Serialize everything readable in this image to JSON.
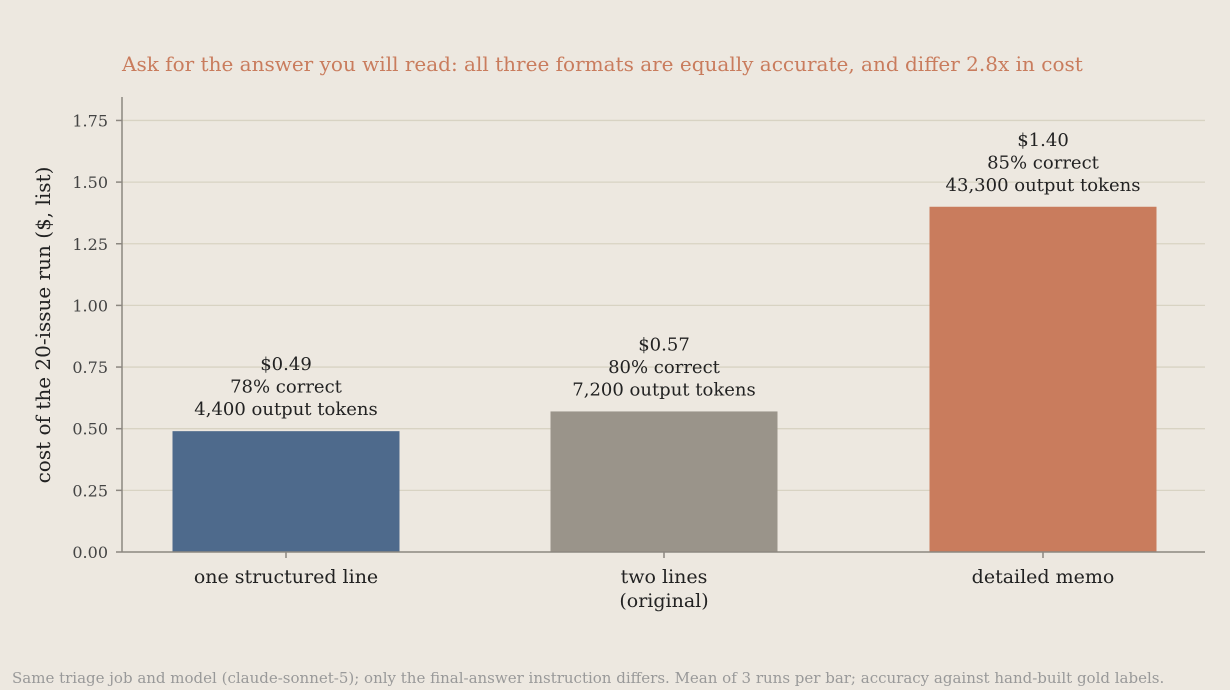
{
  "colors": {
    "title": "#c97c5d",
    "grid": "#d8d3c3",
    "axis": "#8c8780",
    "bars": [
      "#4e6a8c",
      "#9a948a",
      "#c97c5d"
    ]
  },
  "footnote": "Same triage job and model (claude-sonnet-5); only the final-answer instruction differs. Mean of 3 runs per bar; accuracy against hand-built gold labels.",
  "chart_data": {
    "type": "bar",
    "title": "Ask for the answer you will read: all three formats are equally accurate, and differ 2.8x in cost",
    "xlabel": "",
    "ylabel": "cost of the 20-issue run ($, list)",
    "ylim": [
      0,
      1.85
    ],
    "yticks": [
      "0.00",
      "0.25",
      "0.50",
      "0.75",
      "1.00",
      "1.25",
      "1.50",
      "1.75"
    ],
    "grid": true,
    "categories": [
      [
        "one structured line"
      ],
      [
        "two lines",
        "(original)"
      ],
      [
        "detailed memo"
      ]
    ],
    "values": [
      0.49,
      0.57,
      1.4
    ],
    "data_labels": [
      [
        "$0.49",
        "78% correct",
        "4,400 output tokens"
      ],
      [
        "$0.57",
        "80% correct",
        "7,200 output tokens"
      ],
      [
        "$1.40",
        "85% correct",
        "43,300 output tokens"
      ]
    ]
  }
}
